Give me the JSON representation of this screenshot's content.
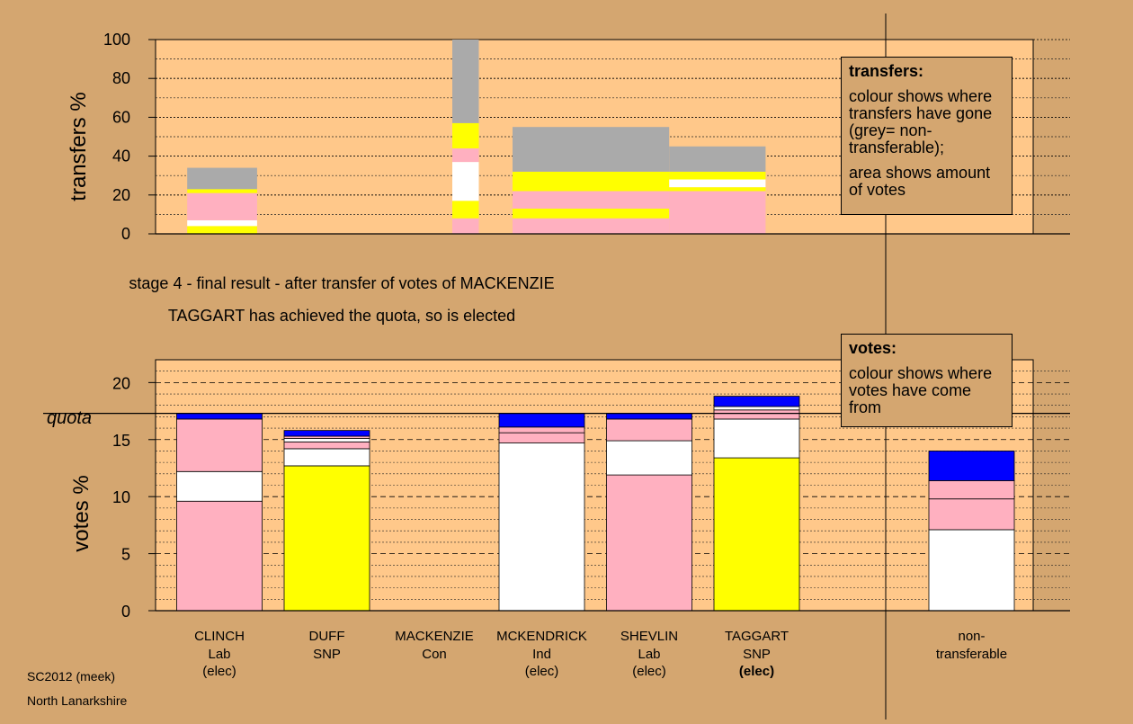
{
  "chart_data": {
    "stage_text": "stage 4 - final result - after transfer of votes of MACKENZIE",
    "result_text": "TAGGART has achieved the quota, so is elected",
    "transfers_chart": {
      "type": "bar",
      "ylabel": "transfers %",
      "yticks": [
        0,
        20,
        40,
        60,
        80,
        100
      ],
      "ylim": [
        0,
        100
      ],
      "bars": [
        {
          "x0": 0.3,
          "x1": 0.88,
          "segments": [
            {
              "v0": 0,
              "v1": 4,
              "color": "#ffff00"
            },
            {
              "v0": 4,
              "v1": 7,
              "color": "#ffffff"
            },
            {
              "v0": 7,
              "v1": 21,
              "color": "#ffb0c0"
            },
            {
              "v0": 21,
              "v1": 23,
              "color": "#ffff00"
            },
            {
              "v0": 23,
              "v1": 34,
              "color": "#aaaaaa"
            }
          ]
        },
        {
          "x0": 2.5,
          "x1": 2.72,
          "segments": [
            {
              "v0": 0,
              "v1": 8,
              "color": "#ffb0c0"
            },
            {
              "v0": 8,
              "v1": 17,
              "color": "#ffff00"
            },
            {
              "v0": 17,
              "v1": 37,
              "color": "#ffffff"
            },
            {
              "v0": 37,
              "v1": 44,
              "color": "#ffb0c0"
            },
            {
              "v0": 44,
              "v1": 57,
              "color": "#ffff00"
            },
            {
              "v0": 57,
              "v1": 100,
              "color": "#aaaaaa"
            }
          ]
        },
        {
          "x0": 3.0,
          "x1": 4.3,
          "segments": [
            {
              "v0": 0,
              "v1": 8,
              "color": "#ffb0c0"
            },
            {
              "v0": 8,
              "v1": 13,
              "color": "#ffff00"
            },
            {
              "v0": 13,
              "v1": 22,
              "color": "#ffb0c0"
            },
            {
              "v0": 22,
              "v1": 32,
              "color": "#ffff00"
            },
            {
              "v0": 32,
              "v1": 55,
              "color": "#aaaaaa"
            }
          ]
        },
        {
          "x0": 4.3,
          "x1": 5.1,
          "segments": [
            {
              "v0": 0,
              "v1": 22,
              "color": "#ffb0c0"
            },
            {
              "v0": 22,
              "v1": 24,
              "color": "#ffff00"
            },
            {
              "v0": 24,
              "v1": 28,
              "color": "#ffffff"
            },
            {
              "v0": 28,
              "v1": 32,
              "color": "#ffff00"
            },
            {
              "v0": 32,
              "v1": 45,
              "color": "#aaaaaa"
            }
          ]
        }
      ]
    },
    "votes_chart": {
      "type": "bar",
      "ylabel": "votes %",
      "yticks": [
        0,
        5,
        10,
        15,
        20
      ],
      "ylim": [
        0,
        22
      ],
      "quota": 17.3,
      "quota_label": "quota",
      "candidates": [
        {
          "name": "CLINCH",
          "party": "Lab",
          "status": "(elec)",
          "status_bold": false,
          "x": 0,
          "segments": [
            {
              "v0": 0,
              "v1": 9.6,
              "color": "#ffb0c0"
            },
            {
              "v0": 9.6,
              "v1": 12.2,
              "color": "#ffffff"
            },
            {
              "v0": 12.2,
              "v1": 16.8,
              "color": "#ffb0c0"
            },
            {
              "v0": 16.8,
              "v1": 17.3,
              "color": "#0000ff"
            }
          ]
        },
        {
          "name": "DUFF",
          "party": "SNP",
          "status": "",
          "status_bold": false,
          "x": 1,
          "segments": [
            {
              "v0": 0,
              "v1": 12.7,
              "color": "#ffff00"
            },
            {
              "v0": 12.7,
              "v1": 14.2,
              "color": "#ffffff"
            },
            {
              "v0": 14.2,
              "v1": 14.8,
              "color": "#ffb0c0"
            },
            {
              "v0": 14.8,
              "v1": 15.1,
              "color": "#ffffff"
            },
            {
              "v0": 15.1,
              "v1": 15.3,
              "color": "#ffb0c0"
            },
            {
              "v0": 15.3,
              "v1": 15.8,
              "color": "#0000ff"
            }
          ]
        },
        {
          "name": "MACKENZIE",
          "party": "Con",
          "status": "",
          "status_bold": false,
          "x": 2,
          "segments": []
        },
        {
          "name": "MCKENDRICK",
          "party": "Ind",
          "status": "(elec)",
          "status_bold": false,
          "x": 3,
          "segments": [
            {
              "v0": 0,
              "v1": 14.7,
              "color": "#ffffff"
            },
            {
              "v0": 14.7,
              "v1": 15.6,
              "color": "#ffb0c0"
            },
            {
              "v0": 15.6,
              "v1": 16.1,
              "color": "#ffb0c0"
            },
            {
              "v0": 16.1,
              "v1": 17.3,
              "color": "#0000ff"
            }
          ]
        },
        {
          "name": "SHEVLIN",
          "party": "Lab",
          "status": "(elec)",
          "status_bold": false,
          "x": 4,
          "segments": [
            {
              "v0": 0,
              "v1": 11.9,
              "color": "#ffb0c0"
            },
            {
              "v0": 11.9,
              "v1": 14.9,
              "color": "#ffffff"
            },
            {
              "v0": 14.9,
              "v1": 16.8,
              "color": "#ffb0c0"
            },
            {
              "v0": 16.8,
              "v1": 17.3,
              "color": "#0000ff"
            }
          ]
        },
        {
          "name": "TAGGART",
          "party": "SNP",
          "status": "(elec)",
          "status_bold": true,
          "x": 5,
          "segments": [
            {
              "v0": 0,
              "v1": 13.4,
              "color": "#ffff00"
            },
            {
              "v0": 13.4,
              "v1": 16.8,
              "color": "#ffffff"
            },
            {
              "v0": 16.8,
              "v1": 17.6,
              "color": "#ffb0c0"
            },
            {
              "v0": 17.6,
              "v1": 17.9,
              "color": "#ffffff"
            },
            {
              "v0": 17.9,
              "v1": 18.8,
              "color": "#0000ff"
            }
          ]
        },
        {
          "name": "non-",
          "party": "transferable",
          "status": "",
          "status_bold": false,
          "x": 7,
          "segments": [
            {
              "v0": 0,
              "v1": 7.1,
              "color": "#ffffff"
            },
            {
              "v0": 7.1,
              "v1": 9.8,
              "color": "#ffb0c0"
            },
            {
              "v0": 9.8,
              "v1": 11.4,
              "color": "#ffb0c0"
            },
            {
              "v0": 11.4,
              "v1": 14.0,
              "color": "#0000ff"
            }
          ]
        }
      ]
    }
  },
  "legend_transfers": {
    "title": "transfers:",
    "line1": "colour shows where transfers have gone (grey= non-transferable);",
    "line2": "area shows amount of votes"
  },
  "legend_votes": {
    "title": "votes:",
    "line1": "colour shows where votes have come from"
  },
  "footer": {
    "line1": "SC2012 (meek)",
    "line2": "North Lanarkshire"
  }
}
